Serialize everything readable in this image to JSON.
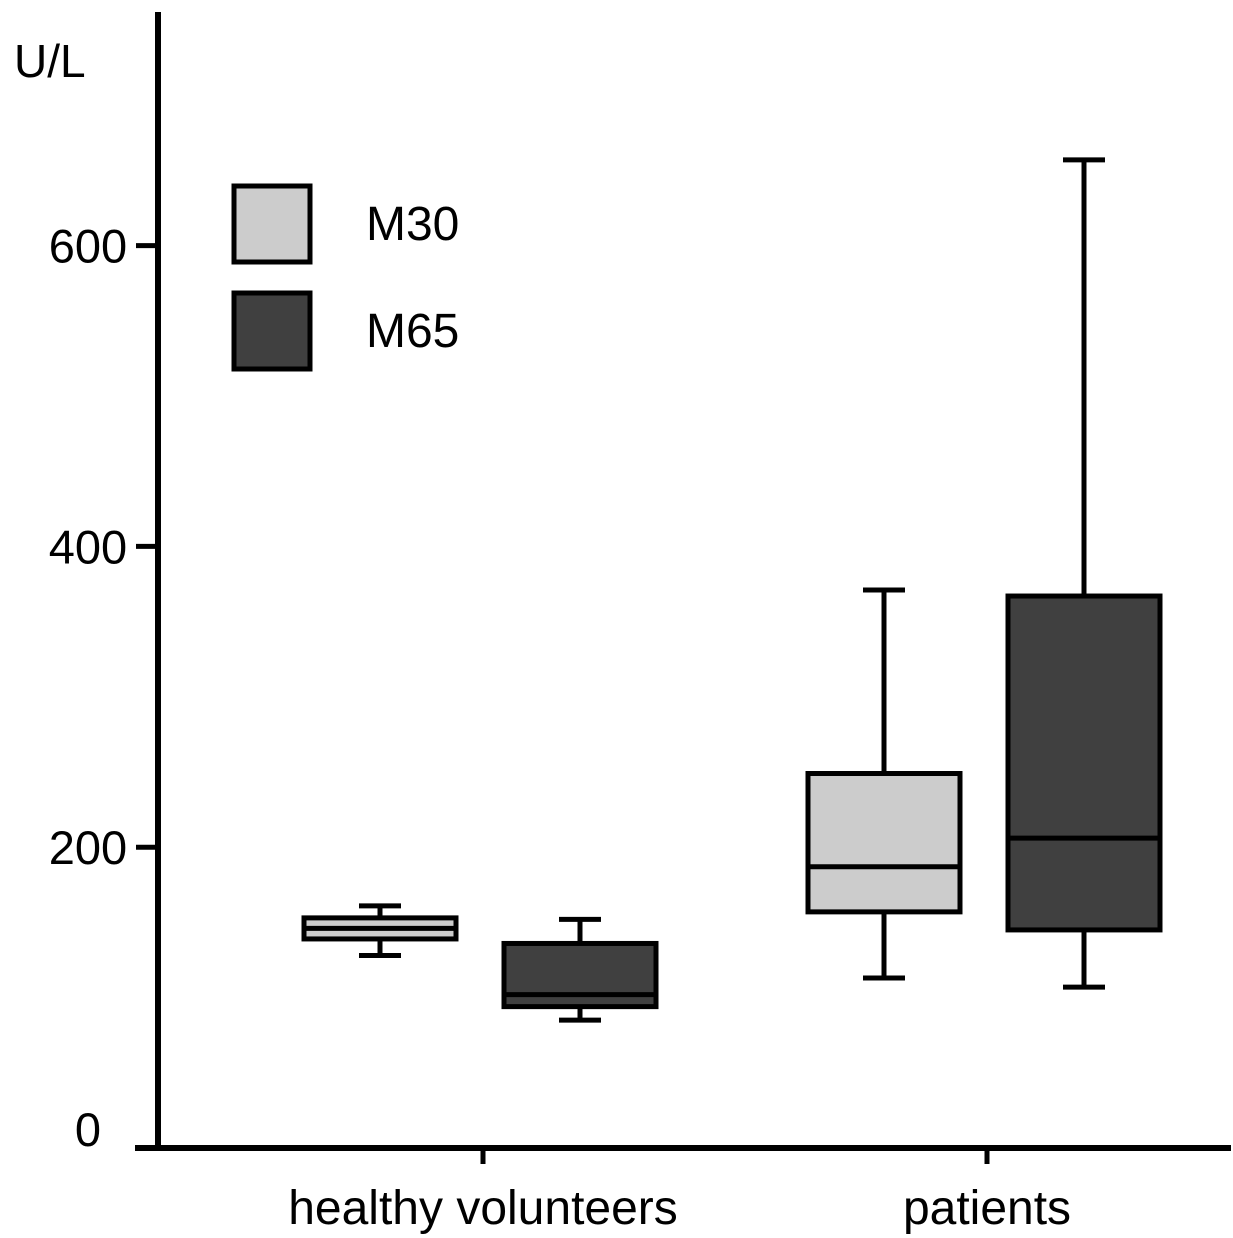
{
  "chart_data": {
    "type": "boxplot",
    "ylabel": "U/L",
    "ylim": [
      0,
      780
    ],
    "yticks": [
      0,
      200,
      400,
      600
    ],
    "ytick_labels": [
      "0",
      "200",
      "400",
      "600"
    ],
    "categories": [
      "healthy volunteers",
      "patients"
    ],
    "legend": {
      "placement": "top-left",
      "entries": [
        {
          "label": "M30",
          "color": "#cccccc"
        },
        {
          "label": "M65",
          "color": "#404040"
        }
      ]
    },
    "series": [
      {
        "name": "M30",
        "color": "#cccccc",
        "values": [
          {
            "min": 128,
            "q1": 139,
            "median": 146,
            "q3": 153,
            "max": 161
          },
          {
            "min": 113,
            "q1": 157,
            "median": 187,
            "q3": 249,
            "max": 371
          }
        ]
      },
      {
        "name": "M65",
        "color": "#404040",
        "values": [
          {
            "min": 85,
            "q1": 94,
            "median": 102,
            "q3": 136,
            "max": 152
          },
          {
            "min": 107,
            "q1": 145,
            "median": 206,
            "q3": 367,
            "max": 657
          }
        ]
      }
    ],
    "grid": false
  }
}
